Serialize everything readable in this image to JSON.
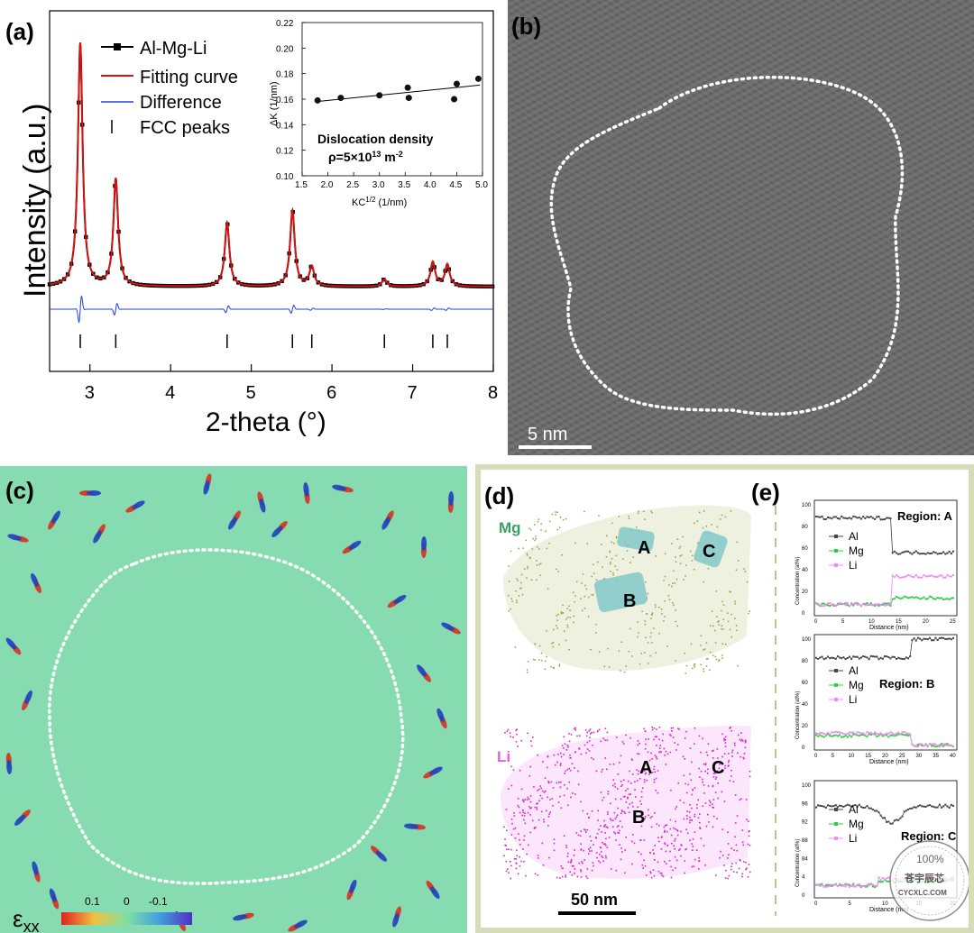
{
  "panel_a": {
    "letter": "(a)",
    "xlabel": "2-theta (°)",
    "ylabel": "Intensity (a.u.)",
    "xticks": [
      "3",
      "4",
      "5",
      "6",
      "7",
      "8"
    ],
    "legend": [
      "Al-Mg-Li",
      "Fitting curve",
      "Difference",
      "FCC peaks"
    ],
    "colors": {
      "data": "#000000",
      "fit": "#e01010",
      "difference": "#2040e0"
    },
    "fcc_peaks": [
      2.88,
      3.32,
      4.7,
      5.51,
      5.75,
      6.65,
      7.25,
      7.43
    ],
    "inset": {
      "ylabel": "ΔK (1/nm)",
      "xlabel_main": "KC",
      "xlabel_sup": "1/2",
      "xlabel_tail": " (1/nm)",
      "yticks": [
        "0.22",
        "0.20",
        "0.18",
        "0.16",
        "0.14",
        "0.12",
        "0.10"
      ],
      "xticks": [
        "1.5",
        "2.0",
        "2.5",
        "3.0",
        "3.5",
        "4.0",
        "4.5",
        "5.0"
      ],
      "annotation_line1": "Dislocation density",
      "annotation_pre": "ρ=5×10",
      "annotation_sup": "13",
      "annotation_unit": " m",
      "annotation_unit_sup": "-2"
    }
  },
  "chart_data": [
    {
      "type": "line",
      "xlabel": "2-theta (°)",
      "ylabel": "Intensity (a.u.)",
      "xlim": [
        2.5,
        8
      ],
      "series": [
        {
          "name": "Al-Mg-Li",
          "peaks_x": [
            2.88,
            3.32,
            4.7,
            5.51,
            5.75,
            6.65,
            7.25,
            7.43
          ],
          "peaks_rel_height": [
            1.0,
            0.44,
            0.26,
            0.31,
            0.08,
            0.03,
            0.1,
            0.09
          ]
        },
        {
          "name": "Fitting curve"
        },
        {
          "name": "Difference"
        },
        {
          "name": "FCC peaks",
          "x": [
            2.88,
            3.32,
            4.7,
            5.51,
            5.75,
            6.65,
            7.25,
            7.43
          ]
        }
      ]
    },
    {
      "type": "scatter",
      "xlabel": "KC1/2 (1/nm)",
      "ylabel": "ΔK (1/nm)",
      "xlim": [
        1.5,
        5.0
      ],
      "ylim": [
        0.1,
        0.22
      ],
      "x": [
        1.8,
        2.25,
        3.0,
        3.55,
        3.57,
        4.45,
        4.5,
        4.92
      ],
      "y": [
        0.159,
        0.161,
        0.163,
        0.169,
        0.161,
        0.16,
        0.172,
        0.176
      ],
      "fit_line": {
        "x": [
          1.75,
          4.95
        ],
        "y": [
          0.158,
          0.171
        ]
      },
      "annotation": "Dislocation density ρ=5×10^13 m^-2"
    }
  ],
  "panel_b": {
    "letter": "(b)",
    "scale_bar": "5 nm"
  },
  "panel_c": {
    "letter": "(c)",
    "colorbar_label": "ε",
    "colorbar_sub": "xx",
    "colorbar_ticks": [
      "0.1",
      "0",
      "-0.1"
    ]
  },
  "panel_d": {
    "letter": "(d)",
    "mg_label": "Mg",
    "li_label": "Li",
    "scale_bar": "50 nm",
    "region_labels": [
      "A",
      "B",
      "C"
    ],
    "colors": {
      "mg": "#8fa040",
      "li": "#e020d0"
    }
  },
  "panel_e": {
    "letter": "(e)",
    "legend": [
      "Al",
      "Mg",
      "Li"
    ],
    "ylabel": "Concentration (at%)",
    "xlabel": "Distance (nm)",
    "plots": [
      {
        "region": "Region: A",
        "yticks": [
          "100",
          "80",
          "60",
          "40",
          "20",
          "0"
        ],
        "xticks": [
          "0",
          "5",
          "10",
          "15",
          "20",
          "25"
        ]
      },
      {
        "region": "Region: B",
        "yticks": [
          "100",
          "80",
          "60",
          "40",
          "20",
          "0"
        ],
        "xticks": [
          "0",
          "5",
          "10",
          "15",
          "20",
          "25",
          "30",
          "35",
          "40"
        ]
      },
      {
        "region": "Region: C",
        "yticks": [
          "100",
          "96",
          "92",
          "88",
          "84",
          "4",
          "0"
        ],
        "xticks": [
          "0",
          "5",
          "10",
          "15",
          "20"
        ]
      }
    ]
  },
  "watermark": {
    "line1": "100%",
    "line2": "苍宇辰芯",
    "line3": "CYCXLC.COM"
  }
}
